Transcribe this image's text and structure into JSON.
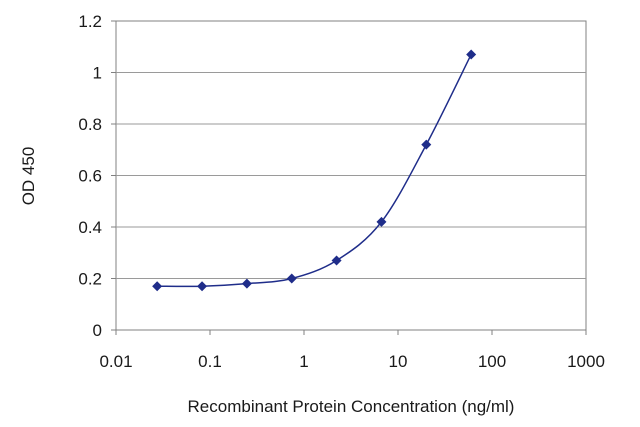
{
  "chart_data": {
    "type": "line",
    "title": "",
    "xlabel": "Recombinant Protein Concentration (ng/ml)",
    "ylabel": "OD 450",
    "x_scale": "log",
    "xlim": [
      0.01,
      1000
    ],
    "ylim": [
      0,
      1.2
    ],
    "x_ticks": [
      "0.01",
      "0.1",
      "1",
      "10",
      "100",
      "1000"
    ],
    "y_ticks": [
      "0",
      "0.2",
      "0.4",
      "0.6",
      "0.8",
      "1",
      "1.2"
    ],
    "grid": "horizontal",
    "legend": "none",
    "series": [
      {
        "x": [
          0.0274,
          0.0823,
          0.247,
          0.741,
          2.22,
          6.67,
          20,
          60
        ],
        "y": [
          0.17,
          0.17,
          0.18,
          0.2,
          0.27,
          0.42,
          0.72,
          1.07
        ],
        "marker": "diamond",
        "smooth": true
      }
    ],
    "colors": {
      "series": "#1f2d8a",
      "grid": "#9a9a9a",
      "axis": "#808080",
      "plot_background": "#ffffff"
    }
  }
}
